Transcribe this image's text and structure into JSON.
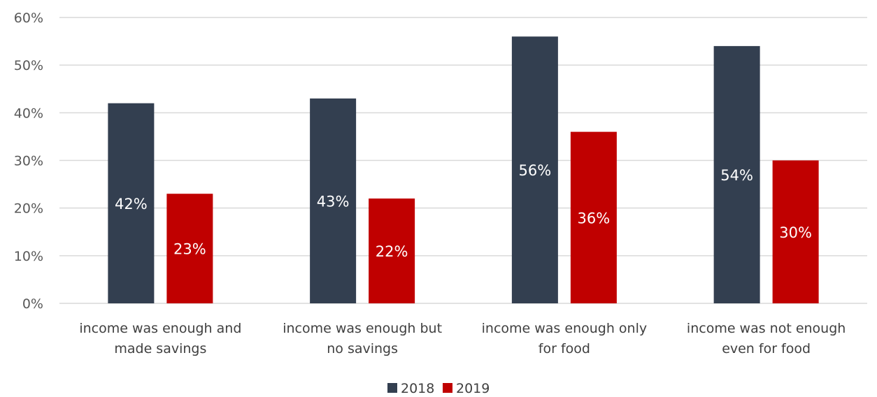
{
  "chart_data": {
    "type": "bar",
    "categories": [
      [
        "income was enough and",
        "made savings"
      ],
      [
        "income was enough but",
        "no savings"
      ],
      [
        "income was enough only",
        "for food"
      ],
      [
        "income was not enough",
        "even for food"
      ]
    ],
    "series": [
      {
        "name": "2018",
        "values": [
          42,
          43,
          56,
          54
        ],
        "labels": [
          "42%",
          "43%",
          "56%",
          "54%"
        ],
        "color": "#333f50"
      },
      {
        "name": "2019",
        "values": [
          23,
          22,
          36,
          30
        ],
        "labels": [
          "23%",
          "22%",
          "36%",
          "30%"
        ],
        "color": "#c00000"
      }
    ],
    "ylim": [
      0,
      60
    ],
    "yticks": [
      0,
      10,
      20,
      30,
      40,
      50,
      60
    ],
    "ytick_labels": [
      "0%",
      "10%",
      "20%",
      "30%",
      "40%",
      "50%",
      "60%"
    ],
    "grid": true,
    "legend_position": "bottom"
  }
}
